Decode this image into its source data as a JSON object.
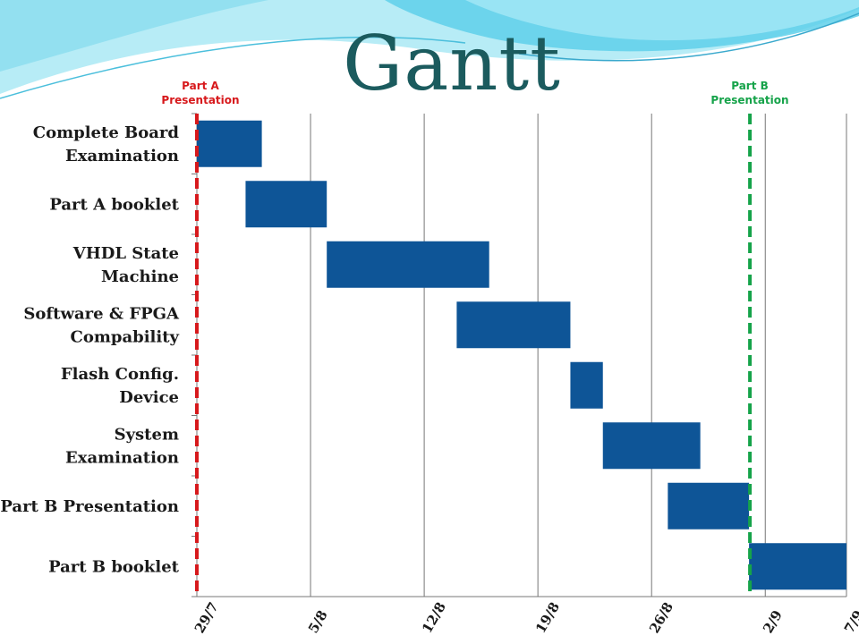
{
  "slide": {
    "title": "Gantt"
  },
  "colors": {
    "bar": "#0e5597",
    "part_a_marker": "#d7191c",
    "part_b_marker": "#16a34a",
    "grid": "#777777",
    "title": "#1b5b5e",
    "wave_light": "#b7ecf6",
    "wave_mid": "#5fd0ea"
  },
  "chart_data": {
    "type": "gantt",
    "x_axis": {
      "unit": "days",
      "tick_labels": [
        "29/7",
        "5/8",
        "12/8",
        "19/8",
        "26/8",
        "2/9",
        "7/9"
      ],
      "tick_days": [
        0,
        7,
        14,
        21,
        28,
        35,
        40
      ],
      "range": [
        0,
        40
      ],
      "grid": true
    },
    "tasks": [
      {
        "label": "Complete Board Examination",
        "start": 0,
        "end": 4
      },
      {
        "label": "Part A booklet",
        "start": 3,
        "end": 8
      },
      {
        "label": "VHDL State Machine",
        "start": 8,
        "end": 18
      },
      {
        "label": "Software & FPGA Compability",
        "start": 16,
        "end": 23
      },
      {
        "label": "Flash Config. Device",
        "start": 23,
        "end": 25
      },
      {
        "label": "System Examination",
        "start": 25,
        "end": 31
      },
      {
        "label": "Part B Presentation",
        "start": 29,
        "end": 34
      },
      {
        "label": "Part B booklet",
        "start": 34,
        "end": 40
      }
    ],
    "markers": [
      {
        "label_line1": "Part A",
        "label_line2": "Presentation",
        "day": 0,
        "style": "dashed",
        "color": "#d7191c"
      },
      {
        "label_line1": "Part B",
        "label_line2": "Presentation",
        "day": 34,
        "style": "dashed",
        "color": "#16a34a"
      }
    ]
  }
}
